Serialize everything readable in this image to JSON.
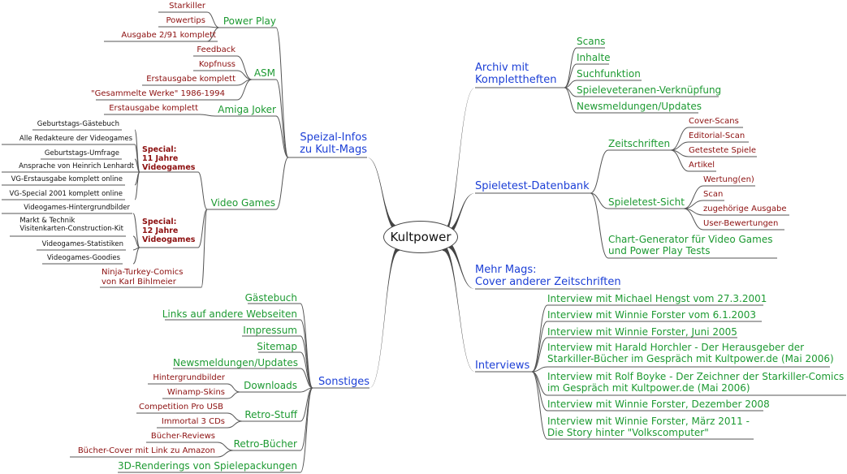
{
  "root": "Kultpower",
  "archiv": {
    "title_line1": "Archiv mit",
    "title_line2": "Komplettheften",
    "items": [
      "Scans",
      "Inhalte",
      "Suchfunktion",
      "Spieleveteranen-Verknüpfung",
      "Newsmeldungen/Updates"
    ]
  },
  "spieletest": {
    "title": "Spieletest-Datenbank",
    "zeitschriften": {
      "title": "Zeitschriften",
      "items": [
        "Cover-Scans",
        "Editorial-Scan",
        "Getestete Spiele",
        "Artikel"
      ]
    },
    "sicht": {
      "title": "Spieletest-Sicht",
      "items": [
        "Wertung(en)",
        "Scan",
        "zugehörige Ausgabe",
        "User-Bewertungen"
      ]
    },
    "chart_line1": "Chart-Generator für Video Games",
    "chart_line2": "und Power Play Tests"
  },
  "mehrmags": {
    "line1": "Mehr Mags:",
    "line2": "Cover anderer Zeitschriften"
  },
  "interviews": {
    "title": "Interviews",
    "items": [
      [
        "Interview mit Michael Hengst vom 27.3.2001"
      ],
      [
        "Interview mit Winnie Forster vom 6.1.2003"
      ],
      [
        "Interview mit Winnie Forster, Juni 2005"
      ],
      [
        "Interview mit Harald Horchler - Der Herausgeber der",
        "Starkiller-Bücher im Gespräch mit Kultpower.de (Mai 2006)"
      ],
      [
        "Interview mit Rolf Boyke - Der Zeichner der Starkiller-Comics",
        "im Gespräch mit Kultpower.de (Mai 2006)"
      ],
      [
        "Interview mit Winnie Forster, Dezember 2008"
      ],
      [
        "Interview mit Winnie Forster, März 2011 -",
        "Die Story hinter \"Volkscomputer\""
      ]
    ]
  },
  "speizal": {
    "title_line1": "Speizal-Infos",
    "title_line2": "zu Kult-Mags",
    "powerplay": {
      "title": "Power Play",
      "items": [
        "Starkiller",
        "Powertips",
        "Ausgabe 2/91 komplett"
      ]
    },
    "asm": {
      "title": "ASM",
      "items": [
        "Feedback",
        "Kopfnuss",
        "Erstausgabe komplett",
        "\"Gesammelte Werke\" 1986-1994"
      ]
    },
    "amiga": {
      "title": "Amiga Joker",
      "items": [
        "Erstausgabe komplett"
      ]
    },
    "videogames": {
      "title": "Video Games",
      "special11": {
        "line1": "Special:",
        "line2": "11 Jahre",
        "line3": "Videogames",
        "items": [
          "Geburtstags-Gästebuch",
          "Alle Redakteure der Videogames",
          "Geburtstags-Umfrage",
          "Ansprache von Heinrich Lenhardt",
          "VG-Erstausgabe komplett online",
          "VG-Special 2001 komplett online"
        ]
      },
      "special12": {
        "line1": "Special:",
        "line2": "12 Jahre",
        "line3": "Videogames",
        "items": [
          [
            "Videogames-Hintergrundbilder"
          ],
          [
            "Markt & Technik",
            "Visitenkarten-Construction-Kit"
          ],
          [
            "Videogames-Statistiken"
          ],
          [
            "Videogames-Goodies"
          ]
        ]
      },
      "ninja_line1": "Ninja-Turkey-Comics",
      "ninja_line2": "von Karl Bihlmeier"
    }
  },
  "sonstiges": {
    "title": "Sonstiges",
    "items": [
      "Gästebuch",
      "Links auf andere Webseiten",
      "Impressum",
      "Sitemap",
      "Newsmeldungen/Updates"
    ],
    "downloads": {
      "title": "Downloads",
      "items": [
        "Hintergrundbilder",
        "Winamp-Skins"
      ]
    },
    "retrostuff": {
      "title": "Retro-Stuff",
      "items": [
        "Competition Pro USB",
        "Immortal 3 CDs"
      ]
    },
    "retrobuecher": {
      "title": "Retro-Bücher",
      "items": [
        "Bücher-Reviews",
        "Bücher-Cover mit Link zu Amazon"
      ]
    },
    "renderings": "3D-Renderings von Spielepackungen"
  },
  "colors": {
    "level1": "#1c3fd6",
    "level2": "#1d9a32",
    "level3": "#8c0f0f",
    "line": "#555555"
  }
}
